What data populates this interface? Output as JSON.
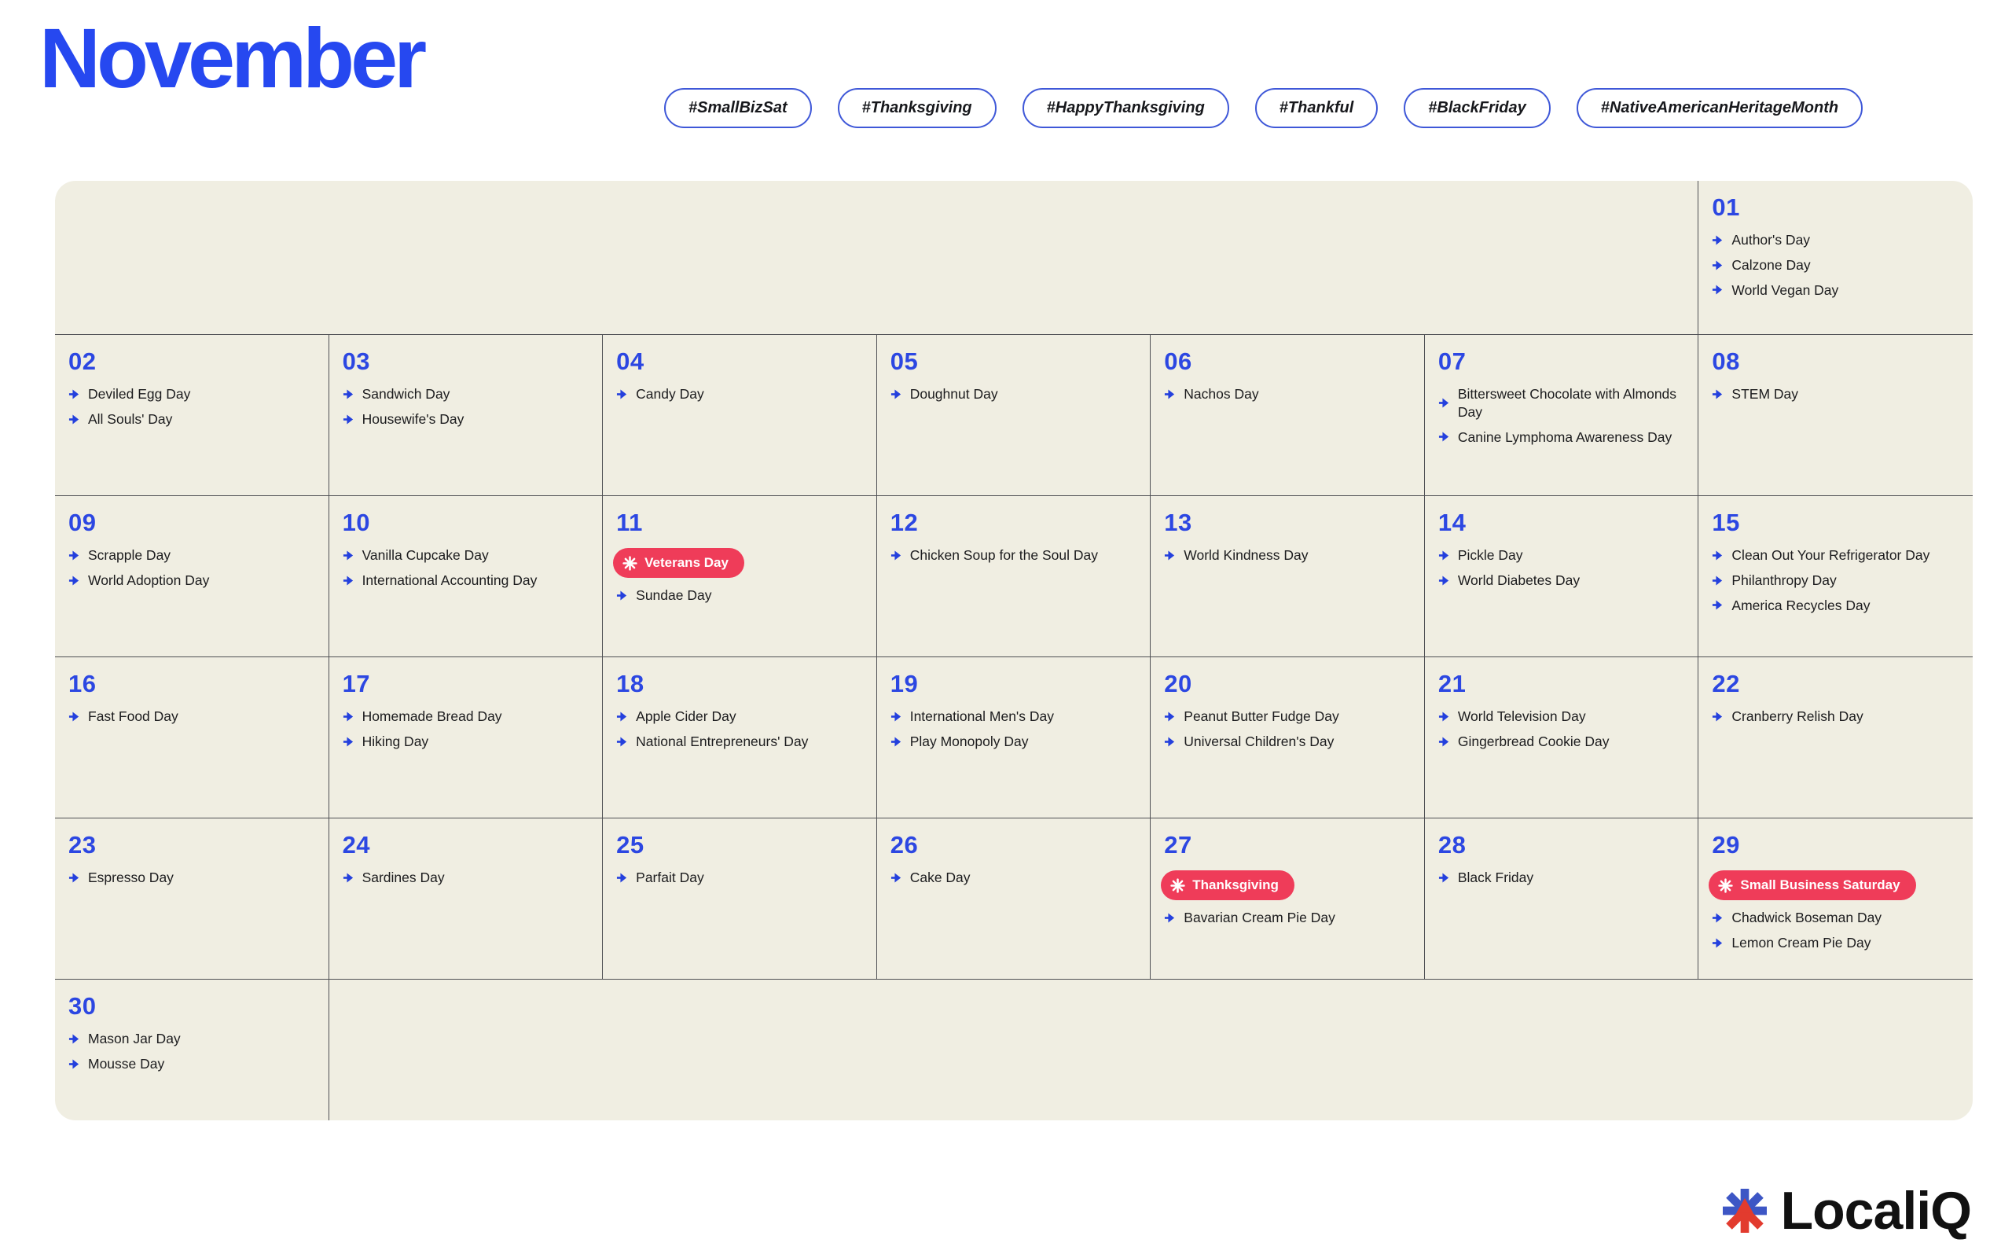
{
  "title": "November",
  "hashtags": [
    "#SmallBizSat",
    "#Thanksgiving",
    "#HappyThanksgiving",
    "#Thankful",
    "#BlackFriday",
    "#NativeAmericanHeritageMonth"
  ],
  "colors": {
    "title_blue": "#2648f0",
    "date_blue": "#2c47e2",
    "arrow_blue": "#2440dd",
    "pill_border_blue": "#3f58d8",
    "badge_red": "#ef3c59",
    "calendar_bg": "#f0eee2",
    "grid_line": "#4f5054",
    "event_text": "#1c1c1e",
    "logo_blue": "#3d56c5",
    "logo_red": "#e23b2e"
  },
  "icons": {
    "event_bullet": "arrow-right-icon",
    "badge_icon": "starburst-icon",
    "logo_icon": "asterisk-icon"
  },
  "calendar": {
    "days": [
      {
        "num": "01",
        "events": [
          "Author's Day",
          "Calzone Day",
          "World Vegan Day"
        ]
      },
      {
        "num": "02",
        "events": [
          "Deviled Egg Day",
          "All Souls' Day"
        ]
      },
      {
        "num": "03",
        "events": [
          "Sandwich Day",
          "Housewife's Day"
        ]
      },
      {
        "num": "04",
        "events": [
          "Candy Day"
        ]
      },
      {
        "num": "05",
        "events": [
          "Doughnut Day"
        ]
      },
      {
        "num": "06",
        "events": [
          "Nachos Day"
        ]
      },
      {
        "num": "07",
        "events": [
          "Bittersweet Chocolate with Almonds Day",
          "Canine Lymphoma Awareness Day"
        ]
      },
      {
        "num": "08",
        "events": [
          "STEM Day"
        ]
      },
      {
        "num": "09",
        "events": [
          "Scrapple Day",
          "World Adoption Day"
        ]
      },
      {
        "num": "10",
        "events": [
          "Vanilla Cupcake Day",
          "International Accounting Day"
        ]
      },
      {
        "num": "11",
        "badge": "Veterans Day",
        "events": [
          "Sundae Day"
        ]
      },
      {
        "num": "12",
        "events": [
          "Chicken Soup for the Soul Day"
        ]
      },
      {
        "num": "13",
        "events": [
          "World Kindness Day"
        ]
      },
      {
        "num": "14",
        "events": [
          "Pickle Day",
          "World Diabetes Day"
        ]
      },
      {
        "num": "15",
        "events": [
          "Clean Out Your Refrigerator Day",
          "Philanthropy Day",
          "America Recycles Day"
        ]
      },
      {
        "num": "16",
        "events": [
          "Fast Food Day"
        ]
      },
      {
        "num": "17",
        "events": [
          "Homemade Bread Day",
          "Hiking Day"
        ]
      },
      {
        "num": "18",
        "events": [
          "Apple Cider Day",
          "National Entrepreneurs' Day"
        ]
      },
      {
        "num": "19",
        "events": [
          "International Men's Day",
          "Play Monopoly Day"
        ]
      },
      {
        "num": "20",
        "events": [
          "Peanut Butter Fudge Day",
          "Universal Children's Day"
        ]
      },
      {
        "num": "21",
        "events": [
          "World Television Day",
          "Gingerbread Cookie Day"
        ]
      },
      {
        "num": "22",
        "events": [
          "Cranberry Relish Day"
        ]
      },
      {
        "num": "23",
        "events": [
          "Espresso Day"
        ]
      },
      {
        "num": "24",
        "events": [
          "Sardines Day"
        ]
      },
      {
        "num": "25",
        "events": [
          "Parfait Day"
        ]
      },
      {
        "num": "26",
        "events": [
          "Cake Day"
        ]
      },
      {
        "num": "27",
        "badge": "Thanksgiving",
        "events": [
          "Bavarian Cream Pie Day"
        ]
      },
      {
        "num": "28",
        "events": [
          "Black Friday"
        ]
      },
      {
        "num": "29",
        "badge": "Small Business Saturday",
        "events": [
          "Chadwick Boseman Day",
          "Lemon Cream Pie Day"
        ]
      },
      {
        "num": "30",
        "events": [
          "Mason Jar Day",
          "Mousse Day"
        ]
      }
    ]
  },
  "logo": {
    "text": "LocaliQ"
  }
}
